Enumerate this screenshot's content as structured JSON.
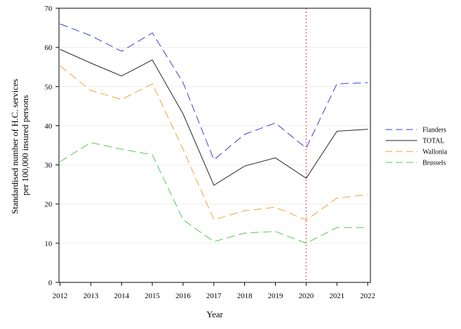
{
  "chart_data": {
    "type": "line",
    "title": "",
    "xlabel": "Year",
    "ylabel_lines": [
      "Standardised number of H.C. services",
      "per 100,000 insured persons"
    ],
    "x": [
      2012,
      2013,
      2014,
      2015,
      2016,
      2017,
      2018,
      2019,
      2020,
      2021,
      2022
    ],
    "x_tick_labels": [
      "2012",
      "2013",
      "2014",
      "2015",
      "2016",
      "2017",
      "2018",
      "2019",
      "2020",
      "2021",
      "2022"
    ],
    "ylim": [
      0,
      70
    ],
    "y_ticks": [
      0,
      10,
      20,
      30,
      40,
      50,
      60,
      70
    ],
    "y_tick_labels": [
      "0",
      "10",
      "20",
      "30",
      "40",
      "50",
      "60",
      "70"
    ],
    "grid": "horizontal",
    "legend_position": "right",
    "reference_line": {
      "x": 2020,
      "style": "dotted",
      "color": "#e05050"
    },
    "series": [
      {
        "name": "Flanders",
        "color": "#3a3ad6",
        "dash": "dashed",
        "values": [
          66.0,
          63.0,
          59.0,
          63.7,
          51.0,
          31.3,
          37.8,
          40.7,
          34.3,
          50.7,
          51.0
        ]
      },
      {
        "name": "TOTAL",
        "color": "#222222",
        "dash": "solid",
        "values": [
          59.5,
          56.0,
          52.7,
          56.8,
          43.0,
          24.8,
          29.7,
          31.8,
          26.6,
          38.6,
          39.1
        ]
      },
      {
        "name": "Wallonia",
        "color": "#f0a030",
        "dash": "dashed",
        "values": [
          55.3,
          49.0,
          46.7,
          50.7,
          34.0,
          16.0,
          18.3,
          19.2,
          15.9,
          21.5,
          22.4
        ]
      },
      {
        "name": "Brussels",
        "color": "#50c850",
        "dash": "dashed",
        "values": [
          30.8,
          35.7,
          34.0,
          32.6,
          16.0,
          10.4,
          12.6,
          13.0,
          10.0,
          14.0,
          14.0
        ]
      }
    ]
  }
}
